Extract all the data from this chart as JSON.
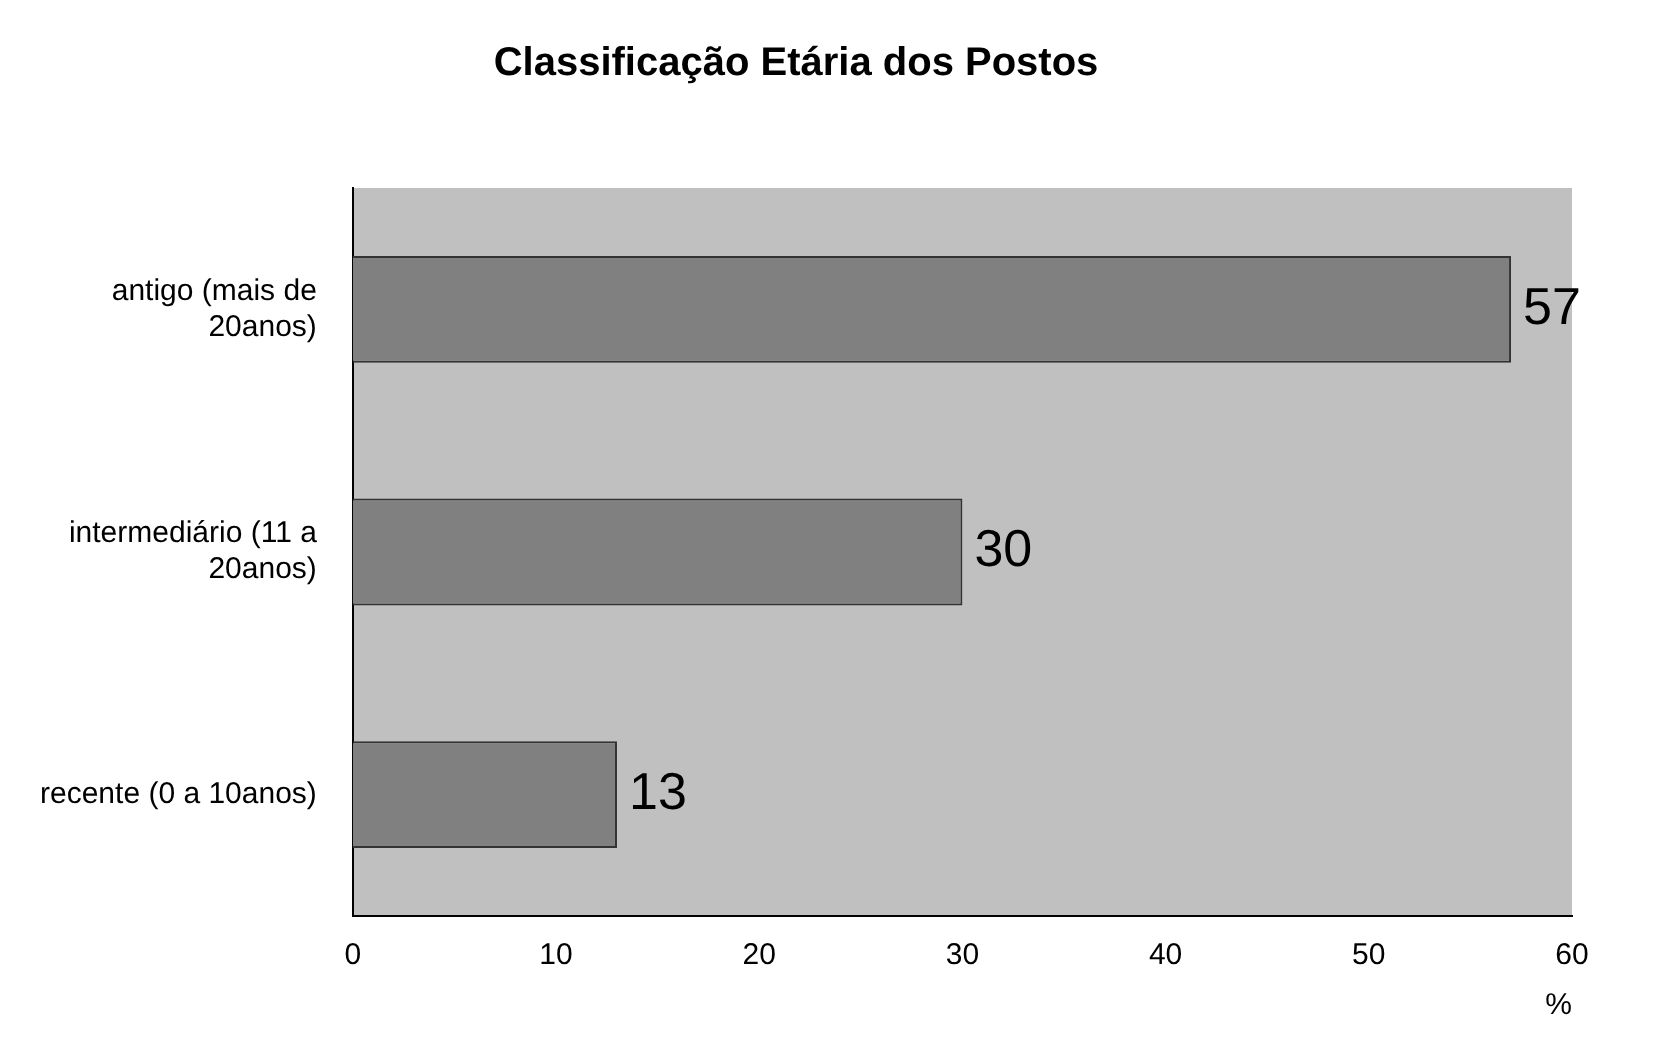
{
  "chart_data": {
    "type": "bar",
    "orientation": "horizontal",
    "title": "Classificação Etária dos Postos",
    "xlabel": "%",
    "categories": [
      "antigo (mais de 20anos)",
      "intermediário (11 a 20anos)",
      "recente (0 a 10anos)"
    ],
    "values": [
      57,
      30,
      13
    ],
    "color": "#808080",
    "xlim": [
      0,
      60
    ],
    "xticks": [
      0,
      10,
      20,
      30,
      40,
      50,
      60
    ],
    "grid": false,
    "legend": false,
    "data_labels": true
  }
}
